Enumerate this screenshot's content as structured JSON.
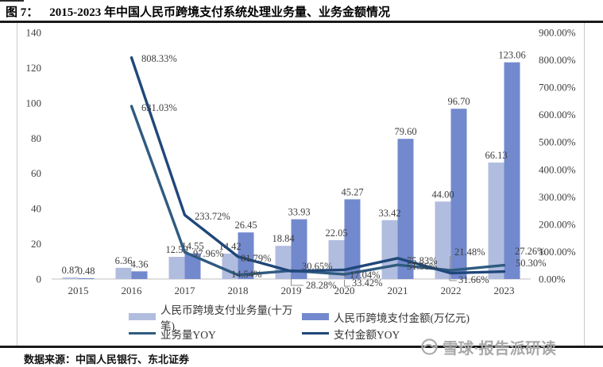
{
  "figure": {
    "label": "图 7：",
    "title": "2015-2023 年中国人民币跨境支付系统处理业务量、业务金额情况",
    "source": "数据来源：中国人民银行、东北证券",
    "watermark_text": "雪球·报告派研读"
  },
  "chart_data": {
    "type": "combo bar+line, dual axis",
    "title": "2015-2023 年中国人民币跨境支付系统处理业务量、业务金额情况",
    "categories": [
      "2015",
      "2016",
      "2017",
      "2018",
      "2019",
      "2020",
      "2021",
      "2022",
      "2023"
    ],
    "bar_series": [
      {
        "name": "人民币跨境支付业务量(十万笔)",
        "axis": "left",
        "color": "#b1bddf",
        "values": [
          0.87,
          6.36,
          12.59,
          14.42,
          18.84,
          22.05,
          33.42,
          44.0,
          66.13
        ],
        "labels": [
          "0.87",
          "6.36",
          "12.59",
          "14.42",
          "18.84",
          "22.05",
          "33.42",
          "44.00",
          "66.13"
        ]
      },
      {
        "name": "人民币跨境支付金额(万亿元)",
        "axis": "left",
        "color": "#7289cd",
        "values": [
          0.48,
          4.36,
          14.55,
          26.45,
          33.93,
          45.27,
          79.6,
          96.7,
          123.06
        ],
        "labels": [
          "0.48",
          "4.36",
          "14.55",
          "26.45",
          "33.93",
          "45.27",
          "79.60",
          "96.70",
          "123.06"
        ]
      }
    ],
    "line_series": [
      {
        "name": "业务量YOY",
        "axis": "right",
        "color": "#2f5b80",
        "values": [
          null,
          631.03,
          97.96,
          14.54,
          30.65,
          17.04,
          51.56,
          31.66,
          50.3
        ],
        "labels": [
          "",
          "631.03%",
          "97.96%",
          "14.54%",
          "30.65%",
          "17.04%",
          "51.56%",
          "31.66%",
          "50.30%"
        ]
      },
      {
        "name": "支付金额YOY",
        "axis": "right",
        "color": "#1f4779",
        "values": [
          null,
          808.33,
          233.72,
          81.79,
          28.28,
          33.42,
          75.83,
          21.48,
          27.26
        ],
        "labels": [
          "",
          "808.33%",
          "233.72%",
          "81.79%",
          "28.28%",
          "33.42%",
          "75.83%",
          "21.48%",
          "27.26%"
        ]
      }
    ],
    "left_axis": {
      "min": 0,
      "max": 140,
      "step": 20,
      "tick_labels": [
        "0",
        "20",
        "40",
        "60",
        "80",
        "100",
        "120",
        "140"
      ]
    },
    "right_axis": {
      "min": 0,
      "max": 900,
      "step": 100,
      "tick_labels": [
        "0.00%",
        "100.00%",
        "200.00%",
        "300.00%",
        "400.00%",
        "500.00%",
        "600.00%",
        "700.00%",
        "800.00%",
        "900.00%"
      ]
    },
    "grid": false,
    "legend_position": "bottom"
  }
}
